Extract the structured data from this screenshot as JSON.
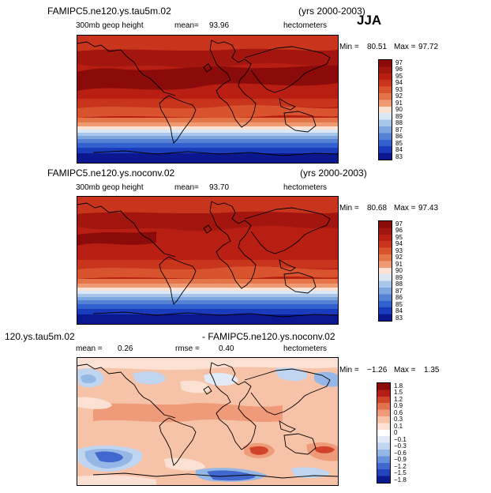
{
  "season": "JJA",
  "panels": [
    {
      "title_left": "FAMIPC5.ne120.ys.tau5m.02",
      "title_right": "(yrs 2000-2003)",
      "sub_left": "300mb geop height",
      "sub_mid_label": "mean=",
      "sub_mid_value": "93.96",
      "sub_right": "hectometers",
      "min_label": "Min =",
      "min_value": "80.51",
      "max_label": "Max =",
      "max_value": "97.72",
      "colorbar_labels": [
        "97",
        "96",
        "95",
        "94",
        "93",
        "92",
        "91",
        "90",
        "89",
        "88",
        "87",
        "86",
        "85",
        "84",
        "83"
      ],
      "colorbar_colors": [
        "#8b0a0a",
        "#a3150f",
        "#b81f12",
        "#c9351c",
        "#d9542e",
        "#e47548",
        "#f09a73",
        "#fbe2d3",
        "#dbe7f5",
        "#a8c6ea",
        "#7ea7e0",
        "#5682d6",
        "#3360cf",
        "#1b3bbd",
        "#0a178f"
      ]
    },
    {
      "title_left": "FAMIPC5.ne120.ys.noconv.02",
      "title_right": "(yrs 2000-2003)",
      "sub_left": "300mb geop height",
      "sub_mid_label": "mean=",
      "sub_mid_value": "93.70",
      "sub_right": "hectometers",
      "min_label": "Min =",
      "min_value": "80.68",
      "max_label": "Max =",
      "max_value": "97.43",
      "colorbar_labels": [
        "97",
        "96",
        "95",
        "94",
        "93",
        "92",
        "91",
        "90",
        "89",
        "88",
        "87",
        "86",
        "85",
        "84",
        "83"
      ],
      "colorbar_colors": [
        "#8b0a0a",
        "#a3150f",
        "#b81f12",
        "#c9351c",
        "#d9542e",
        "#e47548",
        "#f09a73",
        "#fbe2d3",
        "#dbe7f5",
        "#a8c6ea",
        "#7ea7e0",
        "#5682d6",
        "#3360cf",
        "#1b3bbd",
        "#0a178f"
      ]
    },
    {
      "title_left": "120.ys.tau5m.02",
      "title_right": "- FAMIPC5.ne120.ys.noconv.02",
      "sub_left_label": "mean =",
      "sub_left_value": "0.26",
      "sub_mid_label": "rmse =",
      "sub_mid_value": "0.40",
      "sub_right": "hectometers",
      "min_label": "Min =",
      "min_value": "−1.26",
      "max_label": "Max =",
      "max_value": "1.35",
      "colorbar_labels": [
        "1.8",
        "1.5",
        "1.2",
        "0.9",
        "0.6",
        "0.3",
        "0.1",
        "0",
        "−0.1",
        "−0.3",
        "−0.6",
        "−0.9",
        "−1.2",
        "−1.5",
        "−1.8"
      ],
      "colorbar_colors": [
        "#8b0a0a",
        "#b51e14",
        "#d2442a",
        "#e2714d",
        "#ef9a78",
        "#f7c3a8",
        "#fbe1d3",
        "#ffffff",
        "#e1ebf8",
        "#bfd5f0",
        "#94b7e6",
        "#6991db",
        "#4168cf",
        "#2244b8",
        "#0a1a8f"
      ]
    }
  ]
}
